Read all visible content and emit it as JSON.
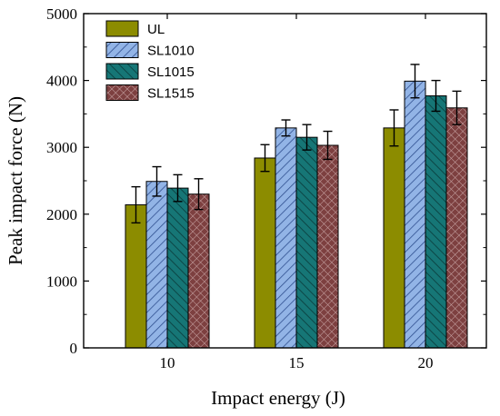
{
  "chart_data": {
    "type": "bar",
    "title": "",
    "xlabel": "Impact energy (J)",
    "ylabel": "Peak impact force (N)",
    "categories": [
      "10",
      "15",
      "20"
    ],
    "ylim": [
      0,
      5000
    ],
    "yticks": [
      0,
      1000,
      2000,
      3000,
      4000,
      5000
    ],
    "grid": false,
    "legend_position": "top-left",
    "series": [
      {
        "name": "UL",
        "values": [
          2140,
          2840,
          3290
        ],
        "errors": [
          270,
          200,
          270
        ],
        "color": "#8c8c00",
        "pattern": "solid"
      },
      {
        "name": "SL1010",
        "values": [
          2490,
          3290,
          3990
        ],
        "errors": [
          220,
          120,
          250
        ],
        "color": "#92b4e6",
        "pattern": "diagonal-right"
      },
      {
        "name": "SL1015",
        "values": [
          2390,
          3150,
          3770
        ],
        "errors": [
          200,
          190,
          230
        ],
        "color": "#167676",
        "pattern": "diagonal-left"
      },
      {
        "name": "SL1515",
        "values": [
          2300,
          3030,
          3590
        ],
        "errors": [
          230,
          210,
          250
        ],
        "color": "#7d4040",
        "pattern": "crosshatch"
      }
    ]
  }
}
